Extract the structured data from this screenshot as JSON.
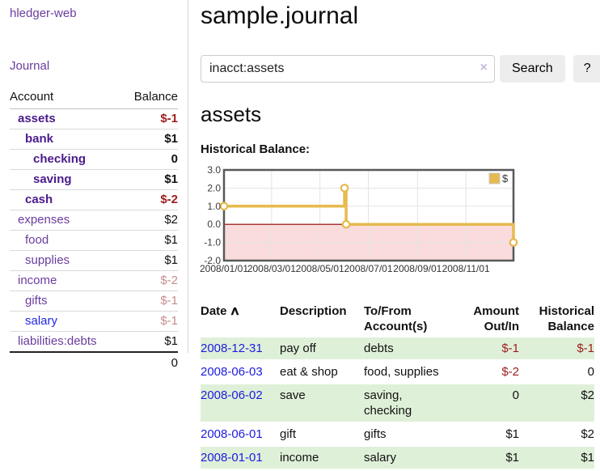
{
  "sidebar": {
    "brand": "hledger-web",
    "nav": {
      "journal": "Journal"
    },
    "accounts_table": {
      "headers": {
        "account": "Account",
        "balance": "Balance"
      },
      "rows": [
        {
          "name": "assets",
          "balance": "$-1",
          "indent": 1,
          "bold": true,
          "balance_color": "negative-strong"
        },
        {
          "name": "bank",
          "balance": "$1",
          "indent": 2,
          "bold": true,
          "balance_color": "default"
        },
        {
          "name": "checking",
          "balance": "0",
          "indent": 3,
          "bold": true,
          "balance_color": "default"
        },
        {
          "name": "saving",
          "balance": "$1",
          "indent": 3,
          "bold": true,
          "balance_color": "default"
        },
        {
          "name": "cash",
          "balance": "$-2",
          "indent": 2,
          "bold": true,
          "balance_color": "negative-strong"
        },
        {
          "name": "expenses",
          "balance": "$2",
          "indent": 1,
          "bold": false,
          "balance_color": "default"
        },
        {
          "name": "food",
          "balance": "$1",
          "indent": 2,
          "bold": false,
          "balance_color": "default"
        },
        {
          "name": "supplies",
          "balance": "$1",
          "indent": 2,
          "bold": false,
          "balance_color": "default"
        },
        {
          "name": "income",
          "balance": "$-2",
          "indent": 1,
          "bold": false,
          "balance_color": "negative-soft"
        },
        {
          "name": "gifts",
          "balance": "$-1",
          "indent": 2,
          "bold": false,
          "balance_color": "negative-soft"
        },
        {
          "name": "salary",
          "balance": "$-1",
          "indent": 2,
          "bold": false,
          "balance_color": "negative-soft",
          "name_color": "blue"
        },
        {
          "name": "liabilities:debts",
          "balance": "$1",
          "indent": 1,
          "bold": false,
          "balance_color": "default"
        }
      ],
      "total": "0"
    }
  },
  "header": {
    "title": "sample.journal"
  },
  "search": {
    "query": "inacct:assets",
    "clear_icon": "×",
    "search_button": "Search",
    "help_button": "?"
  },
  "account_page": {
    "heading": "assets",
    "chart_label": "Historical Balance:"
  },
  "chart_data": {
    "type": "line",
    "step": true,
    "title": "Historical Balance:",
    "ylim": [
      -2,
      3
    ],
    "y_ticks": [
      {
        "label": "3.0",
        "value": 3
      },
      {
        "label": "2.0",
        "value": 2
      },
      {
        "label": "1.0",
        "value": 1
      },
      {
        "label": "0.0",
        "value": 0
      },
      {
        "label": "-1.0",
        "value": -1
      },
      {
        "label": "-2.0",
        "value": -2
      }
    ],
    "xlim_days": [
      0,
      365
    ],
    "x_ticks": [
      {
        "label": "2008/01/01",
        "day": 0
      },
      {
        "label": "2008/03/01",
        "day": 60
      },
      {
        "label": "2008/05/01",
        "day": 121
      },
      {
        "label": "2008/07/01",
        "day": 182
      },
      {
        "label": "2008/09/01",
        "day": 244
      },
      {
        "label": "2008/11/01",
        "day": 305
      }
    ],
    "series": [
      {
        "name": "$",
        "points": [
          {
            "date": "2008-01-01",
            "day": 0,
            "value": 1
          },
          {
            "date": "2008-06-01",
            "day": 152,
            "value": 2
          },
          {
            "date": "2008-06-03",
            "day": 154,
            "value": 0
          },
          {
            "date": "2008-12-31",
            "day": 365,
            "value": -1
          }
        ]
      }
    ],
    "legend": {
      "label": "$",
      "position": "top-right"
    },
    "grid": true,
    "negative_region": true
  },
  "register": {
    "headers": {
      "date": "Date",
      "sort_icon": "∧",
      "description": "Description",
      "account_lines": [
        "To/From",
        "Account(s)"
      ],
      "amount_lines": [
        "Amount",
        "Out/In"
      ],
      "balance_lines": [
        "Historical",
        "Balance"
      ]
    },
    "rows": [
      {
        "date": "2008-12-31",
        "description": "pay off",
        "accounts": "debts",
        "amount": "$-1",
        "amount_negative": true,
        "balance": "$-1",
        "balance_negative": true
      },
      {
        "date": "2008-06-03",
        "description": "eat & shop",
        "accounts": "food, supplies",
        "amount": "$-2",
        "amount_negative": true,
        "balance": "0",
        "balance_negative": false
      },
      {
        "date": "2008-06-02",
        "description": "save",
        "accounts": "saving, checking",
        "amount": "0",
        "amount_negative": false,
        "balance": "$2",
        "balance_negative": false
      },
      {
        "date": "2008-06-01",
        "description": "gift",
        "accounts": "gifts",
        "amount": "$1",
        "amount_negative": false,
        "balance": "$2",
        "balance_negative": false
      },
      {
        "date": "2008-01-01",
        "description": "income",
        "accounts": "salary",
        "amount": "$1",
        "amount_negative": false,
        "balance": "$1",
        "balance_negative": false
      }
    ]
  },
  "colors": {
    "link_purple": "#6a3d9e",
    "link_purple_bold": "#4a1a8c",
    "link_blue": "#2525e6",
    "date_link_blue": "#1c1ce0",
    "negative_strong": "#9e1c1c",
    "negative_soft": "#c68c8c",
    "row_stripe_green": "#dff0d8",
    "chart_line_gold": "#e6ba4e",
    "chart_negative_pink": "#fadcdd",
    "chart_zero_line": "#8b0000",
    "chart_border": "#58585a",
    "chart_grid": "#e3e3e3"
  }
}
